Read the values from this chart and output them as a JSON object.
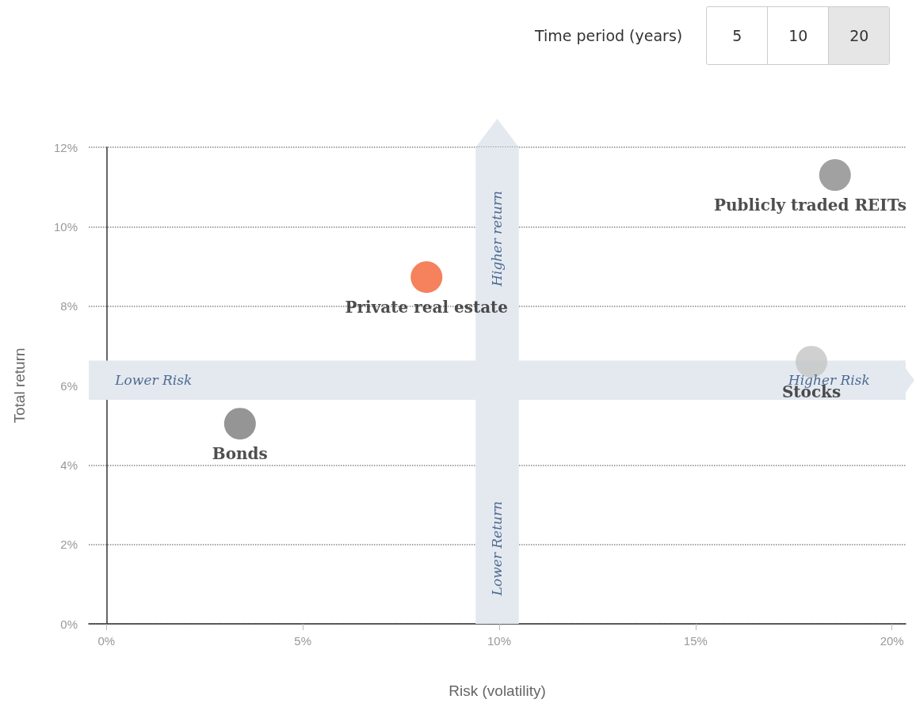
{
  "chart_data": {
    "type": "scatter",
    "xlabel": "Risk (volatility)",
    "ylabel": "Total return",
    "series": [
      {
        "name": "Bonds",
        "color": "#7a7a7a",
        "x": [
          3.4
        ],
        "values": [
          5.04
        ]
      },
      {
        "name": "Private real estate",
        "color": "#f26135",
        "x": [
          8.15
        ],
        "values": [
          8.73
        ]
      },
      {
        "name": "Publicly traded REITs",
        "color": "#8a8a8a",
        "x": [
          18.55
        ],
        "values": [
          11.3
        ]
      },
      {
        "name": "Stocks",
        "color": "#c4c4c4",
        "x": [
          17.95
        ],
        "values": [
          6.6
        ]
      }
    ],
    "xlim": [
      -0.45,
      20.35
    ],
    "xticks": [
      {
        "value": 0,
        "label": "0%"
      },
      {
        "value": 5,
        "label": "5%"
      },
      {
        "value": 10,
        "label": "10%"
      },
      {
        "value": 15,
        "label": "15%"
      },
      {
        "value": 20,
        "label": "20%"
      }
    ],
    "ylim": [
      0,
      12
    ],
    "yticks": [
      {
        "value": 0,
        "label": "0%"
      },
      {
        "value": 2,
        "label": "2%"
      },
      {
        "value": 4,
        "label": "4%"
      },
      {
        "value": 6,
        "label": "6%"
      },
      {
        "value": 8,
        "label": "8%"
      },
      {
        "value": 10,
        "label": "10%"
      },
      {
        "value": 12,
        "label": "12%"
      }
    ],
    "bands": [
      {
        "axis": "x",
        "from": 9.4,
        "to": 10.5,
        "color": "#e4e9f0"
      },
      {
        "axis": "y",
        "from": 5.64,
        "to": 6.63,
        "color": "#e4e9f0"
      }
    ],
    "grid": "y",
    "legend": false,
    "marker": "circle",
    "annotations": [
      "Lower Risk",
      "Higher Risk",
      "Higher return",
      "Lower Return",
      "Time period (years)",
      "5",
      "10",
      "20"
    ]
  }
}
